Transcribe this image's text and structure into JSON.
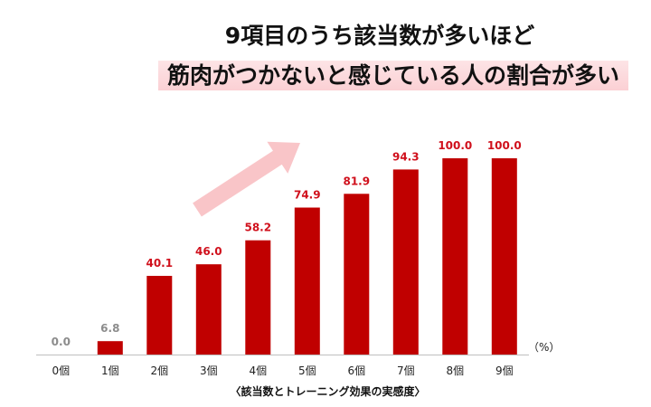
{
  "titles": {
    "line1": "9項目のうち該当数が多いほど",
    "line2": "筋肉がつかないと感じている人の割合が多い"
  },
  "chart_data": {
    "type": "bar",
    "categories": [
      "0個",
      "1個",
      "2個",
      "3個",
      "4個",
      "5個",
      "6個",
      "7個",
      "8個",
      "9個"
    ],
    "values": [
      0.0,
      6.8,
      40.1,
      46.0,
      58.2,
      74.9,
      81.9,
      94.3,
      100.0,
      100.0
    ],
    "value_labels": [
      "0.0",
      "6.8",
      "40.1",
      "46.0",
      "58.2",
      "74.9",
      "81.9",
      "94.3",
      "100.0",
      "100.0"
    ],
    "xlabel": "〈該当数とトレーニング効果の実感度〉",
    "unit_label": "（%）",
    "ylim": [
      0,
      100
    ],
    "grid": false,
    "colors": {
      "bar": "#c00000",
      "label_red": "#d0101c",
      "label_gray": "#8c8c8c",
      "arrow": "#f9c5c8",
      "highlight": "#fbd0d4"
    }
  }
}
